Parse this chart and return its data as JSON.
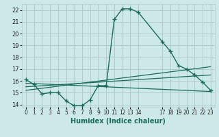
{
  "xlabel": "Humidex (Indice chaleur)",
  "xlim": [
    -0.5,
    23.5
  ],
  "ylim": [
    13.8,
    22.5
  ],
  "yticks": [
    14,
    15,
    16,
    17,
    18,
    19,
    20,
    21,
    22
  ],
  "bg_color": "#cce8e8",
  "grid_color": "#b0cccc",
  "line_color": "#1a6b5a",
  "series_main": {
    "x": [
      0,
      1,
      2,
      3,
      4,
      5,
      6,
      7,
      8,
      9,
      10,
      11,
      12,
      13,
      14,
      17,
      18,
      19,
      20,
      21,
      22,
      23
    ],
    "y": [
      16.1,
      15.7,
      14.9,
      15.0,
      15.0,
      14.3,
      13.9,
      13.9,
      14.4,
      15.6,
      15.6,
      21.2,
      22.1,
      22.1,
      21.8,
      19.3,
      18.5,
      17.3,
      17.0,
      16.5,
      15.9,
      15.2
    ]
  },
  "series_lines": [
    {
      "x": [
        0,
        23
      ],
      "y": [
        15.8,
        15.1
      ]
    },
    {
      "x": [
        0,
        23
      ],
      "y": [
        15.5,
        16.5
      ]
    },
    {
      "x": [
        0,
        23
      ],
      "y": [
        15.2,
        17.2
      ]
    }
  ],
  "xtick_positions": [
    0,
    1,
    2,
    3,
    4,
    5,
    6,
    7,
    8,
    9,
    10,
    11,
    12,
    13,
    14,
    17,
    18,
    19,
    20,
    21,
    22,
    23
  ],
  "xtick_labels": [
    "0",
    "1",
    "2",
    "3",
    "4",
    "5",
    "6",
    "7",
    "8",
    "9",
    "10",
    "11",
    "12",
    "13",
    "14",
    "17",
    "18",
    "19",
    "20",
    "21",
    "22",
    "23"
  ]
}
